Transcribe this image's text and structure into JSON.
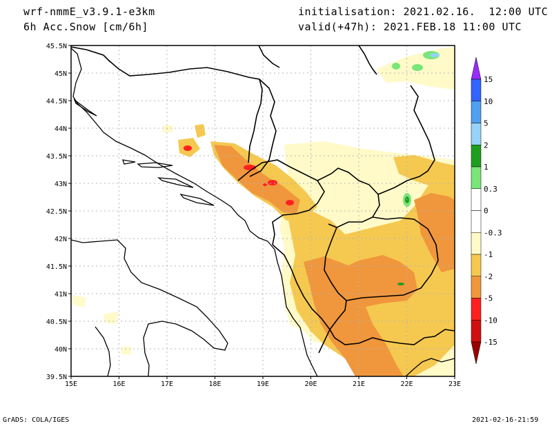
{
  "header": {
    "model": "wrf-nmmE_v3.9.1-e3km",
    "field": "6h Acc.Snow [cm/6h]",
    "init_label": "initialisation:",
    "init_value": "2021.02.16.  12:00 UTC",
    "valid_label": "valid(+47h):",
    "valid_value": "2021.FEB.18 11:00 UTC"
  },
  "map": {
    "lon_labels": [
      "15E",
      "16E",
      "17E",
      "18E",
      "19E",
      "20E",
      "21E",
      "22E",
      "23E"
    ],
    "lat_labels": [
      "39.5N",
      "40N",
      "40.5N",
      "41N",
      "41.5N",
      "42N",
      "42.5N",
      "43N",
      "43.5N",
      "44N",
      "44.5N",
      "45N",
      "45.5N"
    ],
    "field_colors": {
      "light": "#fffac8",
      "yellow": "#f5c850",
      "orange": "#f0963c",
      "red": "#ff2020",
      "light_green": "#78e678",
      "green": "#1e9e1e",
      "light_blue": "#96d2fa"
    }
  },
  "colorbar": {
    "labels": [
      "15",
      "10",
      "5",
      "2",
      "1",
      "0.3",
      "0",
      "-0.3",
      "-1",
      "-2",
      "-5",
      "-10",
      "-15"
    ],
    "colors": [
      "#9a2bff",
      "#3264ff",
      "#50a0f0",
      "#96d2fa",
      "#1e9e1e",
      "#78e678",
      "#ffffff",
      "#ffffff",
      "#fffac8",
      "#f5c850",
      "#f0963c",
      "#ff2020",
      "#d01010",
      "#9a0000"
    ]
  },
  "footer": {
    "left": "GrADS: COLA/IGES",
    "right": "2021-02-16-21:59"
  }
}
